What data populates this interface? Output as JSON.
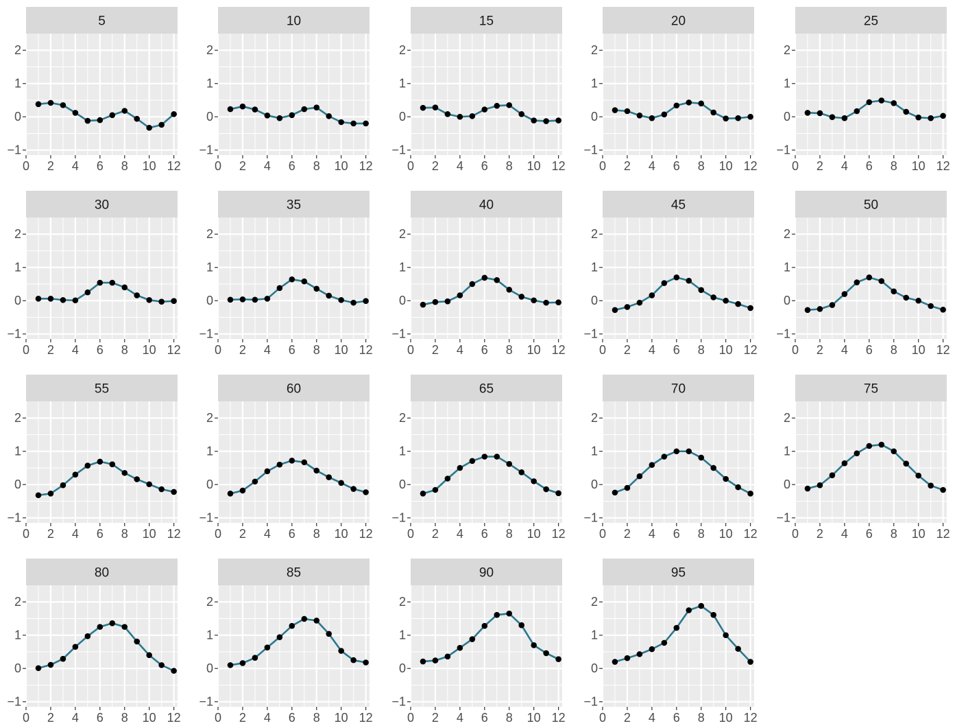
{
  "chart_data": {
    "type": "line",
    "layout": "facet-grid",
    "facet_columns": 5,
    "xlim": [
      0,
      12.3
    ],
    "ylim": [
      -1.15,
      2.5
    ],
    "x_ticks": [
      0,
      2,
      4,
      6,
      8,
      10,
      12
    ],
    "y_ticks": [
      -1,
      0,
      1,
      2
    ],
    "x_tick_labels": [
      "0",
      "2",
      "4",
      "6",
      "8",
      "10",
      "12"
    ],
    "y_tick_labels": [
      "−1",
      "0",
      "1",
      "2"
    ],
    "x": [
      1,
      2,
      3,
      4,
      5,
      6,
      7,
      8,
      9,
      10,
      11,
      12
    ],
    "grid": true,
    "line_color": "#2a788e",
    "point_color": "#000000",
    "panel_background": "#ebebeb",
    "strip_background": "#d9d9d9",
    "facets": [
      {
        "label": "5",
        "values": [
          0.38,
          0.42,
          0.35,
          0.12,
          -0.12,
          -0.1,
          0.05,
          0.18,
          -0.06,
          -0.33,
          -0.24,
          0.08
        ]
      },
      {
        "label": "10",
        "values": [
          0.23,
          0.31,
          0.22,
          0.04,
          -0.04,
          0.05,
          0.23,
          0.28,
          0.02,
          -0.16,
          -0.2,
          -0.2
        ]
      },
      {
        "label": "15",
        "values": [
          0.27,
          0.28,
          0.08,
          0.0,
          0.02,
          0.22,
          0.33,
          0.35,
          0.08,
          -0.11,
          -0.13,
          -0.11
        ]
      },
      {
        "label": "20",
        "values": [
          0.2,
          0.17,
          0.04,
          -0.04,
          0.07,
          0.34,
          0.43,
          0.4,
          0.13,
          -0.05,
          -0.04,
          0.0
        ]
      },
      {
        "label": "25",
        "values": [
          0.12,
          0.11,
          -0.01,
          -0.04,
          0.17,
          0.44,
          0.49,
          0.41,
          0.15,
          -0.02,
          -0.04,
          0.03
        ]
      },
      {
        "label": "30",
        "values": [
          0.06,
          0.06,
          0.02,
          0.01,
          0.25,
          0.54,
          0.54,
          0.4,
          0.16,
          0.02,
          -0.03,
          -0.01
        ]
      },
      {
        "label": "35",
        "values": [
          0.03,
          0.04,
          0.03,
          0.06,
          0.38,
          0.64,
          0.58,
          0.36,
          0.15,
          0.02,
          -0.06,
          -0.01
        ]
      },
      {
        "label": "40",
        "values": [
          -0.12,
          -0.04,
          -0.02,
          0.16,
          0.5,
          0.69,
          0.62,
          0.33,
          0.12,
          0.01,
          -0.06,
          -0.05
        ]
      },
      {
        "label": "45",
        "values": [
          -0.28,
          -0.19,
          -0.06,
          0.16,
          0.53,
          0.7,
          0.6,
          0.32,
          0.1,
          0.0,
          -0.1,
          -0.22
        ]
      },
      {
        "label": "50",
        "values": [
          -0.28,
          -0.25,
          -0.13,
          0.2,
          0.55,
          0.7,
          0.59,
          0.28,
          0.09,
          0.0,
          -0.16,
          -0.27
        ]
      },
      {
        "label": "55",
        "values": [
          -0.32,
          -0.27,
          -0.02,
          0.3,
          0.57,
          0.69,
          0.61,
          0.35,
          0.16,
          0.01,
          -0.14,
          -0.22
        ]
      },
      {
        "label": "60",
        "values": [
          -0.27,
          -0.18,
          0.09,
          0.4,
          0.6,
          0.72,
          0.67,
          0.42,
          0.22,
          0.05,
          -0.13,
          -0.23
        ]
      },
      {
        "label": "65",
        "values": [
          -0.27,
          -0.16,
          0.18,
          0.5,
          0.71,
          0.84,
          0.84,
          0.62,
          0.37,
          0.1,
          -0.14,
          -0.26
        ]
      },
      {
        "label": "70",
        "values": [
          -0.24,
          -0.1,
          0.25,
          0.59,
          0.84,
          1.0,
          1.0,
          0.81,
          0.5,
          0.17,
          -0.08,
          -0.27
        ]
      },
      {
        "label": "75",
        "values": [
          -0.12,
          -0.02,
          0.28,
          0.64,
          0.94,
          1.16,
          1.2,
          1.0,
          0.63,
          0.27,
          -0.03,
          -0.16
        ]
      },
      {
        "label": "80",
        "values": [
          0.01,
          0.11,
          0.29,
          0.65,
          0.97,
          1.25,
          1.36,
          1.25,
          0.81,
          0.4,
          0.1,
          -0.07
        ]
      },
      {
        "label": "85",
        "values": [
          0.1,
          0.16,
          0.32,
          0.63,
          0.94,
          1.28,
          1.49,
          1.44,
          1.04,
          0.53,
          0.25,
          0.18
        ]
      },
      {
        "label": "90",
        "values": [
          0.21,
          0.24,
          0.36,
          0.62,
          0.88,
          1.28,
          1.61,
          1.65,
          1.3,
          0.7,
          0.46,
          0.28
        ]
      },
      {
        "label": "95",
        "values": [
          0.2,
          0.31,
          0.43,
          0.58,
          0.77,
          1.22,
          1.75,
          1.88,
          1.61,
          1.0,
          0.59,
          0.2
        ]
      }
    ]
  }
}
